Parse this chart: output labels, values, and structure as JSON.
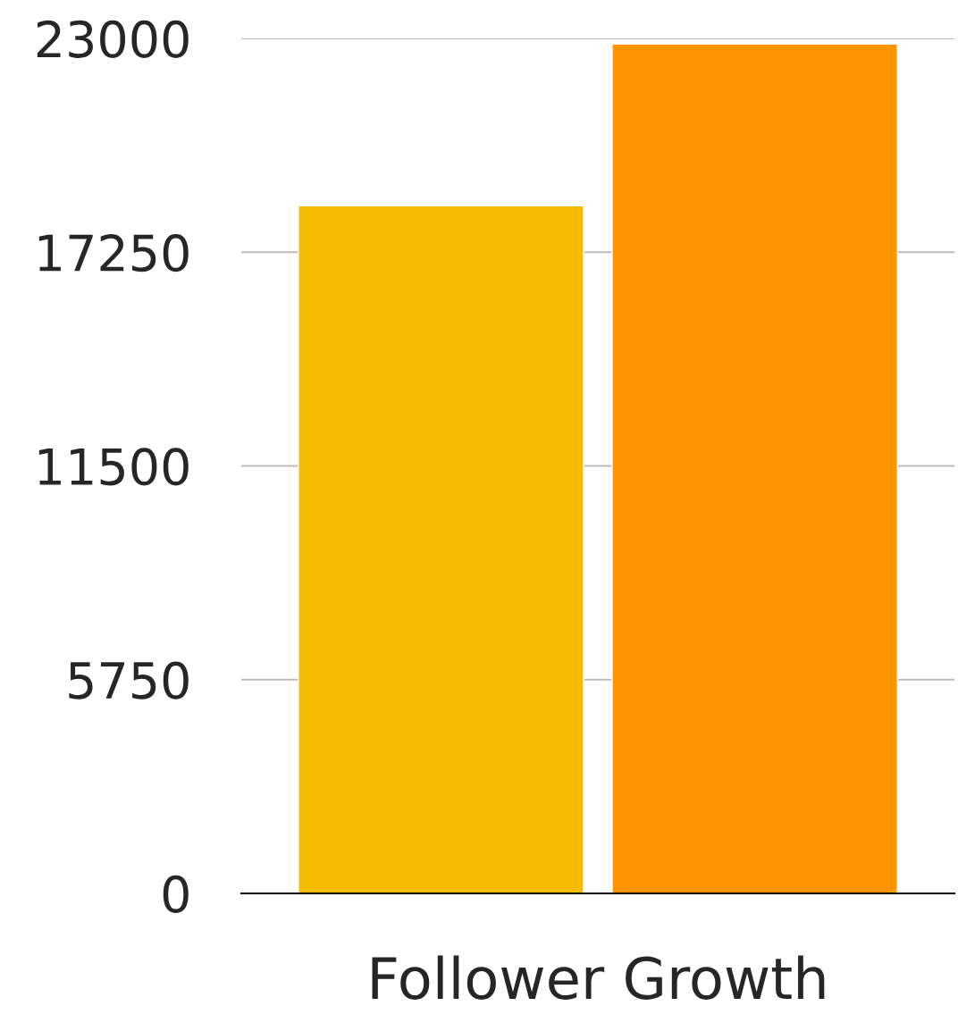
{
  "chart_data": {
    "type": "bar",
    "categories": [
      "Follower Growth"
    ],
    "series": [
      {
        "color": "#f5bb00",
        "values": [
          18500
        ]
      },
      {
        "color": "#ff9400",
        "values": [
          22850
        ]
      }
    ],
    "ylim": [
      0,
      23000
    ],
    "yticks": [
      0,
      5750,
      11500,
      17250,
      23000
    ],
    "grid": "y"
  }
}
